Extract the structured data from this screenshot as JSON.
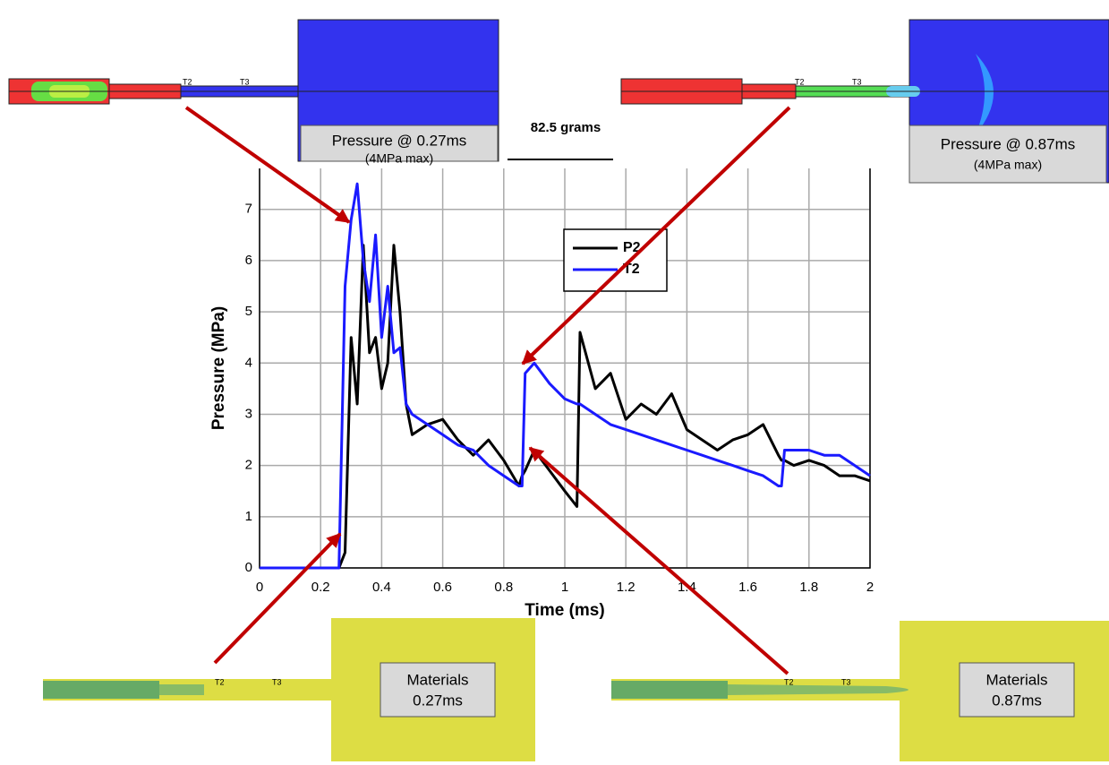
{
  "chart_data": {
    "type": "line",
    "x_label": "Time (ms)",
    "y_label": "Pressure (MPa)",
    "x": [
      0,
      0.1,
      0.2,
      0.26,
      0.28,
      0.3,
      0.32,
      0.34,
      0.36,
      0.38,
      0.4,
      0.42,
      0.44,
      0.46,
      0.48,
      0.5,
      0.55,
      0.6,
      0.65,
      0.7,
      0.75,
      0.8,
      0.85,
      0.86,
      0.87,
      0.9,
      0.95,
      1.0,
      1.04,
      1.05,
      1.1,
      1.15,
      1.2,
      1.25,
      1.3,
      1.35,
      1.4,
      1.45,
      1.5,
      1.55,
      1.6,
      1.65,
      1.7,
      1.71,
      1.72,
      1.75,
      1.8,
      1.85,
      1.9,
      1.95,
      2.0
    ],
    "series": [
      {
        "name": "P2",
        "color": "#000000",
        "values": [
          0,
          0,
          0,
          0,
          0.3,
          4.5,
          3.2,
          6.3,
          4.2,
          4.5,
          3.5,
          4.0,
          6.3,
          5.0,
          3.2,
          2.6,
          2.8,
          2.9,
          2.5,
          2.2,
          2.5,
          2.1,
          1.6,
          1.8,
          1.9,
          2.3,
          1.9,
          1.5,
          1.2,
          4.6,
          3.5,
          3.8,
          2.9,
          3.2,
          3.0,
          3.4,
          2.7,
          2.5,
          2.3,
          2.5,
          2.6,
          2.8,
          2.2,
          2.1,
          2.1,
          2.0,
          2.1,
          2.0,
          1.8,
          1.8,
          1.7
        ]
      },
      {
        "name": "T2",
        "color": "#1a1aff",
        "values": [
          0,
          0,
          0,
          0,
          5.5,
          6.8,
          7.5,
          6.0,
          5.2,
          6.5,
          4.5,
          5.5,
          4.2,
          4.3,
          3.2,
          3.0,
          2.8,
          2.6,
          2.4,
          2.3,
          2.0,
          1.8,
          1.6,
          1.6,
          3.8,
          4.0,
          3.6,
          3.3,
          3.2,
          3.2,
          3.0,
          2.8,
          2.7,
          2.6,
          2.5,
          2.4,
          2.3,
          2.2,
          2.1,
          2.0,
          1.9,
          1.8,
          1.6,
          1.6,
          2.3,
          2.3,
          2.3,
          2.2,
          2.2,
          2.0,
          1.8
        ]
      }
    ],
    "xlim": [
      0,
      2
    ],
    "xticks": [
      0,
      0.2,
      0.4,
      0.6,
      0.8,
      1,
      1.2,
      1.4,
      1.6,
      1.8,
      2
    ],
    "ylim": [
      0,
      7.8
    ],
    "yticks": [
      0,
      1,
      2,
      3,
      4,
      5,
      6,
      7
    ],
    "grid": true
  },
  "mass_label": "82.5 grams",
  "panels": [
    {
      "line1": "Pressure @ 0.27ms",
      "line2": "(4MPa max)"
    },
    {
      "line1": "Pressure @ 0.87ms",
      "line2": "(4MPa max)"
    },
    {
      "line1": "Materials",
      "line2": "0.27ms"
    },
    {
      "line1": "Materials",
      "line2": "0.87ms"
    }
  ],
  "sensor_labels": [
    "T2",
    "T3"
  ]
}
